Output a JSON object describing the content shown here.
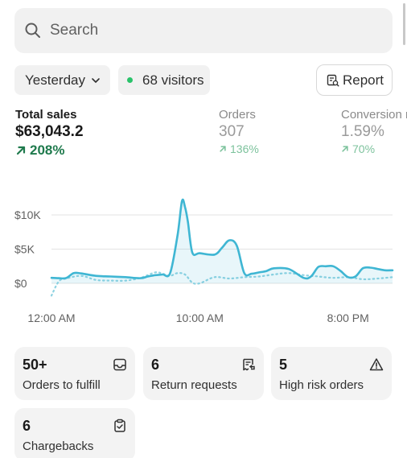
{
  "search": {
    "placeholder": "Search"
  },
  "filters": {
    "date_label": "Yesterday",
    "visitors_label": "68 visitors",
    "visitor_dot_color": "#29c36a"
  },
  "report": {
    "label": "Report"
  },
  "metrics": {
    "total_sales": {
      "label": "Total sales",
      "value": "$63,043.2",
      "change": "208%"
    },
    "orders": {
      "label": "Orders",
      "value": "307",
      "change": "136%"
    },
    "conversion": {
      "label": "Conversion rate",
      "value": "1.59%",
      "change": "70%"
    }
  },
  "chart_data": {
    "type": "line",
    "ytick_labels": [
      "$10K",
      "$5K",
      "$0"
    ],
    "yticks": [
      10000,
      5000,
      0
    ],
    "ylim": [
      0,
      10000
    ],
    "xtick_labels": [
      "12:00 AM",
      "10:00 AM",
      "8:00 PM"
    ],
    "xtick_positions": [
      0,
      10,
      20
    ],
    "xlim": [
      0,
      23
    ],
    "grid": true,
    "series": [
      {
        "style": "solid",
        "color": "#3fb6d3",
        "x": [
          0,
          0.5,
          1,
          1.5,
          2,
          3,
          4,
          5,
          6,
          6.5,
          7,
          7.5,
          8,
          8.5,
          8.8,
          9,
          9.2,
          9.5,
          10,
          11,
          11.5,
          12,
          12.5,
          13,
          13.5,
          14,
          14.5,
          15,
          16,
          17,
          17.5,
          18,
          18.5,
          19,
          19.5,
          20,
          20.5,
          21,
          21.5,
          22,
          22.5,
          23
        ],
        "y": [
          800,
          750,
          780,
          1500,
          1450,
          1100,
          1000,
          900,
          750,
          1000,
          1200,
          1300,
          1500,
          7000,
          12000,
          11200,
          9000,
          4500,
          4400,
          4200,
          5200,
          6300,
          5500,
          1500,
          1400,
          1600,
          1800,
          2200,
          2100,
          800,
          1000,
          2400,
          2500,
          2500,
          1800,
          900,
          1000,
          2200,
          2300,
          2100,
          1900,
          1900
        ]
      },
      {
        "style": "dotted",
        "color": "#8fd3e2",
        "x": [
          0,
          0.5,
          1,
          2,
          3,
          4,
          5,
          6,
          7,
          7.5,
          8,
          8.5,
          9,
          9.5,
          10,
          11,
          12,
          13,
          14,
          15,
          16,
          17,
          18,
          19,
          20,
          21,
          22,
          23
        ],
        "y": [
          -1800,
          300,
          700,
          1100,
          500,
          400,
          400,
          800,
          1600,
          1400,
          1100,
          1500,
          1300,
          100,
          0,
          900,
          700,
          900,
          1000,
          1300,
          1500,
          1200,
          1000,
          800,
          900,
          600,
          700,
          900
        ]
      }
    ]
  },
  "cards": [
    {
      "value": "50+",
      "label": "Orders to fulfill",
      "icon": "inbox-icon"
    },
    {
      "value": "6",
      "label": "Return requests",
      "icon": "receipt-refund-icon"
    },
    {
      "value": "5",
      "label": "High risk orders",
      "icon": "alert-triangle-icon"
    },
    {
      "value": "6",
      "label": "Chargebacks",
      "icon": "clipboard-check-icon"
    }
  ]
}
